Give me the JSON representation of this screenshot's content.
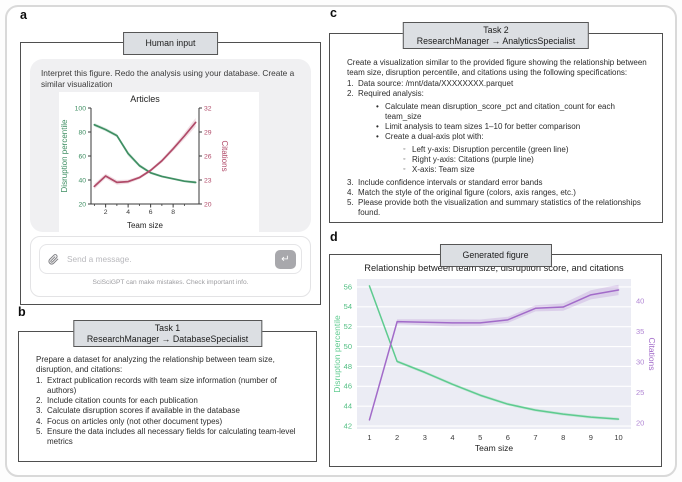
{
  "panels": {
    "a": {
      "letter": "a",
      "tab": "Human input",
      "prompt": "Interpret this figure. Redo the analysis using your database. Create a similar visualization",
      "chat": {
        "placeholder": "Send a message.",
        "attach_icon": "paperclip-icon",
        "send_icon": "return-arrow-icon",
        "send_glyph": "↵",
        "disclaimer": "SciSciGPT can make mistakes. Check important info."
      }
    },
    "b": {
      "letter": "b",
      "tab_line1": "Task 1",
      "tab_line2": "ResearchManager → DatabaseSpecialist",
      "intro": "Prepare a dataset for analyzing the relationship between team size, disruption, and citations:",
      "items": [
        {
          "n": "1.",
          "t": "Extract publication records with team size information (number of authors)"
        },
        {
          "n": "2.",
          "t": "Include citation counts for each publication"
        },
        {
          "n": "3.",
          "t": "Calculate disruption scores if available in the database"
        },
        {
          "n": "4.",
          "t": "Focus on articles only (not other document types)"
        },
        {
          "n": "5.",
          "t": "Ensure the data includes all necessary fields for calculating team-level metrics"
        }
      ]
    },
    "c": {
      "letter": "c",
      "tab_line1": "Task 2",
      "tab_line2": "ResearchManager → AnalyticsSpecialist",
      "intro": "Create a visualization similar to the provided figure showing the relationship between team size, disruption percentile, and citations using the following specifications:",
      "item1": {
        "n": "1.",
        "t": "Data source: /mnt/data/XXXXXXXX.parquet"
      },
      "item2": {
        "n": "2.",
        "t": "Required analysis:"
      },
      "bullets": [
        "Calculate mean disruption_score_pct and citation_count for each team_size",
        "Limit analysis to team sizes 1–10 for better comparison",
        "Create a dual-axis plot with:"
      ],
      "sub_bullets": [
        "Left y-axis: Disruption percentile (green line)",
        "Right y-axis: Citations (purple line)",
        "X-axis: Team size"
      ],
      "items_tail": [
        {
          "n": "3.",
          "t": "Include confidence intervals or standard error bands"
        },
        {
          "n": "4.",
          "t": "Match the style of the original figure (colors, axis ranges, etc.)"
        },
        {
          "n": "5.",
          "t": "Please provide both the visualization and summary statistics of the relationships found."
        }
      ]
    },
    "d": {
      "letter": "d",
      "tab": "Generated figure"
    }
  },
  "colors": {
    "inset_green": "#3e8e62",
    "inset_red": "#b04a68",
    "gen_green": "#5ecb8f",
    "gen_purple": "#a26bc9",
    "plot_background": "#ebecf4",
    "tab_background": "#dcdfe3"
  },
  "chart_data": [
    {
      "id": "human-input-inset",
      "type": "line",
      "dual_axis": true,
      "title": "Articles",
      "xlabel": "Team size",
      "x": [
        1,
        2,
        3,
        4,
        5,
        6,
        7,
        8,
        9,
        10
      ],
      "xlim": [
        0.7,
        10.3
      ],
      "xticks": [
        2,
        4,
        6,
        8
      ],
      "xticks_minor": [
        1,
        3,
        5,
        7,
        9
      ],
      "grid": false,
      "left": {
        "label": "Disruption percentile",
        "color": "#3e8e62",
        "ylim": [
          20,
          100
        ],
        "ticks": [
          20,
          40,
          60,
          80,
          100
        ],
        "values": [
          86,
          82,
          77,
          62,
          52,
          46,
          43,
          41,
          39,
          38
        ],
        "band": [
          1.5,
          1.5,
          1.5,
          2,
          1.5,
          1.2,
          1,
          1,
          1,
          1.3
        ]
      },
      "right": {
        "label": "Citations",
        "color": "#b04a68",
        "ylim": [
          20,
          32
        ],
        "ticks": [
          20,
          23,
          26,
          29,
          32
        ],
        "values": [
          22.2,
          23.5,
          22.7,
          22.8,
          23.3,
          24.2,
          25.4,
          26.9,
          28.5,
          30.2
        ],
        "band": [
          0.35,
          0.3,
          0.3,
          0.25,
          0.2,
          0.2,
          0.25,
          0.3,
          0.4,
          0.55
        ]
      }
    },
    {
      "id": "generated-figure",
      "type": "line",
      "dual_axis": true,
      "title": "Relationship between team size, disruption score, and citations",
      "xlabel": "Team size",
      "x": [
        1,
        2,
        3,
        4,
        5,
        6,
        7,
        8,
        9,
        10
      ],
      "xlim": [
        0.55,
        10.45
      ],
      "xticks": [
        1,
        2,
        3,
        4,
        5,
        6,
        7,
        8,
        9,
        10
      ],
      "plot_bg": "#ebecf4",
      "grid": true,
      "left": {
        "label": "Disruption percentile",
        "color": "#5ecb8f",
        "tick_color": "#4fbe81",
        "ylim": [
          41.7,
          56.8
        ],
        "ticks": [
          42,
          44,
          46,
          48,
          50,
          52,
          54,
          56
        ],
        "values": [
          56.1,
          48.5,
          47.4,
          46.2,
          45.1,
          44.2,
          43.6,
          43.2,
          42.9,
          42.7
        ],
        "band": [
          0.15,
          0.15,
          0.15,
          0.15,
          0.15,
          0.15,
          0.15,
          0.15,
          0.15,
          0.15
        ]
      },
      "right": {
        "label": "Citations",
        "color": "#a26bc9",
        "tick_color": "#b186d4",
        "ylim": [
          19.0,
          43.6
        ],
        "ticks": [
          20,
          25,
          30,
          35,
          40
        ],
        "values": [
          20.5,
          36.6,
          36.5,
          36.4,
          36.4,
          36.9,
          38.8,
          39.0,
          41.0,
          41.8
        ],
        "band": [
          0.3,
          0.4,
          0.5,
          0.6,
          0.55,
          0.5,
          0.5,
          0.6,
          0.75,
          0.85
        ]
      }
    }
  ]
}
